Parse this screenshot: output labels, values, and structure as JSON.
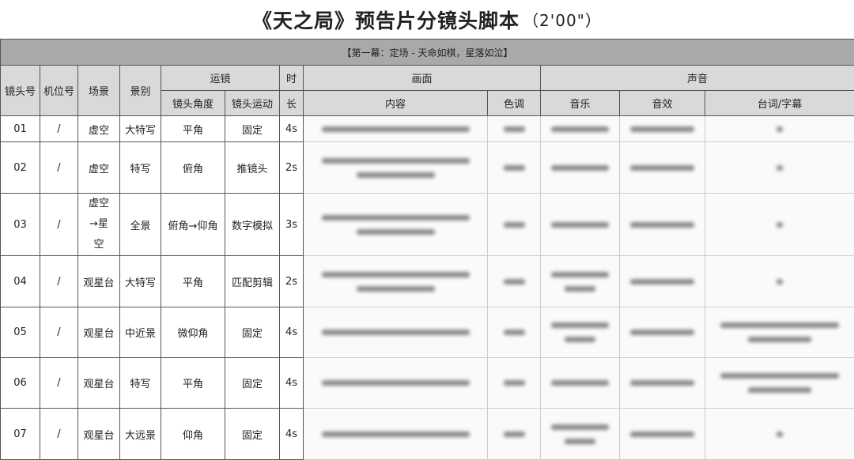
{
  "title": {
    "main": "《天之局》预告片分镜头脚本",
    "duration": "（2'00\"）"
  },
  "act": "【第一幕：定场 - 天命如棋，星落如泣】",
  "headers": {
    "shot_no": "镜头号",
    "camera_no": "机位号",
    "scene": "场景",
    "shot_size": "景别",
    "camera_move": "运镜",
    "angle": "镜头角度",
    "motion": "镜头运动",
    "duration_a": "时",
    "duration_b": "长",
    "picture": "画面",
    "content": "内容",
    "tone": "色调",
    "sound": "声音",
    "music": "音乐",
    "sfx": "音效",
    "dialogue": "台词/字幕"
  },
  "rows": [
    {
      "no": "01",
      "cam": "/",
      "scene": "虚空",
      "size": "大特写",
      "angle": "平角",
      "motion": "固定",
      "dur": "4s"
    },
    {
      "no": "02",
      "cam": "/",
      "scene": "虚空",
      "size": "特写",
      "angle": "俯角",
      "motion": "推镜头",
      "dur": "2s"
    },
    {
      "no": "03",
      "cam": "/",
      "scene": "虚空→星空",
      "size": "全景",
      "angle": "俯角→仰角",
      "motion": "数字模拟",
      "dur": "3s"
    },
    {
      "no": "04",
      "cam": "/",
      "scene": "观星台",
      "size": "大特写",
      "angle": "平角",
      "motion": "匹配剪辑",
      "dur": "2s"
    },
    {
      "no": "05",
      "cam": "/",
      "scene": "观星台",
      "size": "中近景",
      "angle": "微仰角",
      "motion": "固定",
      "dur": "4s"
    },
    {
      "no": "06",
      "cam": "/",
      "scene": "观星台",
      "size": "特写",
      "angle": "平角",
      "motion": "固定",
      "dur": "4s"
    },
    {
      "no": "07",
      "cam": "/",
      "scene": "观星台",
      "size": "大远景",
      "angle": "仰角",
      "motion": "固定",
      "dur": "4s"
    }
  ]
}
